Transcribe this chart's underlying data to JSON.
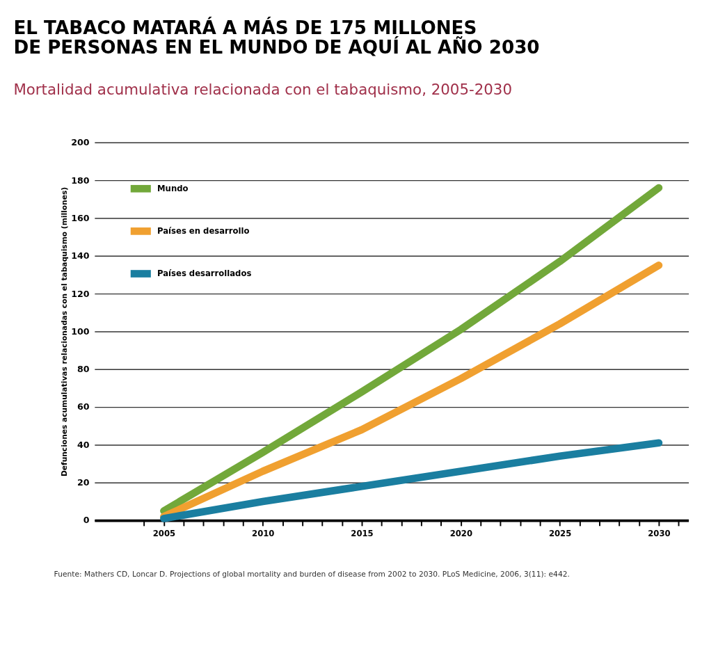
{
  "chart_data": {
    "type": "line",
    "title": [
      "EL TABACO MATARÁ A MÁS DE 175 MILLONES",
      "DE PERSONAS EN EL MUNDO DE AQUÍ AL AÑO 2030"
    ],
    "subtitle": "Mortalidad acumulativa relacionada con el tabaquismo, 2005-2030",
    "ylabel": "Defunciones acumulativas relacionadas con el tabaquismo (millones)",
    "x": [
      2005,
      2010,
      2015,
      2020,
      2025,
      2030
    ],
    "series": [
      {
        "name": "Mundo",
        "color": "#72a83a",
        "values": [
          5,
          36,
          68,
          101,
          137,
          176
        ]
      },
      {
        "name": "Países en desarrollo",
        "color": "#f0a030",
        "values": [
          2,
          26,
          48,
          75,
          104,
          135
        ]
      },
      {
        "name": "Países desarrollados",
        "color": "#1a7ea0",
        "values": [
          1,
          10,
          18,
          26,
          34,
          41
        ]
      }
    ],
    "xlim": [
      2001.5,
      2031.5
    ],
    "xticks": [
      {
        "value": 2004,
        "label": null
      },
      2005,
      {
        "value": 2006,
        "label": null
      },
      {
        "value": 2007,
        "label": null
      },
      {
        "value": 2008,
        "label": null
      },
      {
        "value": 2009,
        "label": null
      },
      2010,
      {
        "value": 2011,
        "label": null
      },
      {
        "value": 2012,
        "label": null
      },
      {
        "value": 2013,
        "label": null
      },
      {
        "value": 2014,
        "label": null
      },
      2015,
      {
        "value": 2016,
        "label": null
      },
      {
        "value": 2017,
        "label": null
      },
      {
        "value": 2018,
        "label": null
      },
      {
        "value": 2019,
        "label": null
      },
      2020,
      {
        "value": 2021,
        "label": null
      },
      {
        "value": 2022,
        "label": null
      },
      {
        "value": 2023,
        "label": null
      },
      {
        "value": 2024,
        "label": null
      },
      2025,
      {
        "value": 2026,
        "label": null
      },
      {
        "value": 2027,
        "label": null
      },
      {
        "value": 2028,
        "label": null
      },
      {
        "value": 2029,
        "label": null
      },
      2030,
      {
        "value": 2031,
        "label": null
      }
    ],
    "ylim": [
      0,
      200
    ],
    "yticks": [
      0,
      20,
      40,
      60,
      80,
      100,
      120,
      140,
      160,
      180,
      200
    ],
    "grid": "y",
    "legend": "top left",
    "marker": "none",
    "line_style": "solid",
    "annotations": [
      "Fuente: Mathers CD, Loncar D. Projections of global mortality and burden of disease from 2002 to 2030. PLoS Medicine, 2006, 3(11): e442."
    ]
  }
}
